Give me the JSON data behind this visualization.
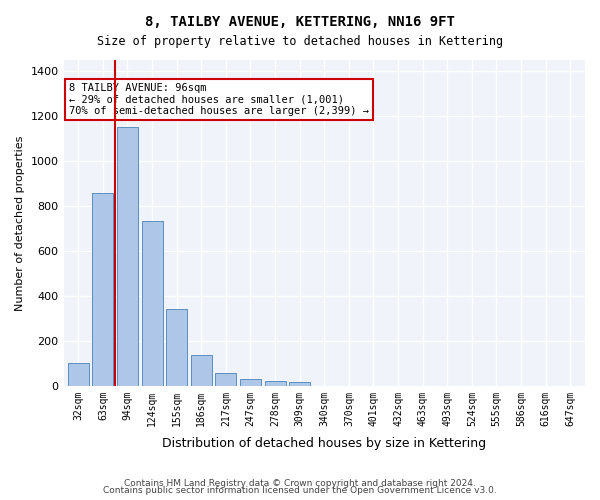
{
  "title": "8, TAILBY AVENUE, KETTERING, NN16 9FT",
  "subtitle": "Size of property relative to detached houses in Kettering",
  "xlabel": "Distribution of detached houses by size in Kettering",
  "ylabel": "Number of detached properties",
  "footnote1": "Contains HM Land Registry data © Crown copyright and database right 2024.",
  "footnote2": "Contains public sector information licensed under the Open Government Licence v3.0.",
  "bar_labels": [
    "32sqm",
    "63sqm",
    "94sqm",
    "124sqm",
    "155sqm",
    "186sqm",
    "217sqm",
    "247sqm",
    "278sqm",
    "309sqm",
    "340sqm",
    "370sqm",
    "401sqm",
    "432sqm",
    "463sqm",
    "493sqm",
    "524sqm",
    "555sqm",
    "586sqm",
    "616sqm",
    "647sqm"
  ],
  "bar_values": [
    100,
    860,
    1150,
    735,
    340,
    135,
    55,
    30,
    22,
    15,
    0,
    0,
    0,
    0,
    0,
    0,
    0,
    0,
    0,
    0,
    0
  ],
  "bar_color": "#aec6e8",
  "bar_edgecolor": "#5a8fc0",
  "bg_color": "#f0f4fa",
  "grid_color": "#ffffff",
  "annotation_text": "8 TAILBY AVENUE: 96sqm\n← 29% of detached houses are smaller (1,001)\n70% of semi-detached houses are larger (2,399) →",
  "vline_x": 1.5,
  "vline_color": "#cc0000",
  "annotation_box_color": "#cc0000",
  "ylim": [
    0,
    1450
  ],
  "yticks": [
    0,
    200,
    400,
    600,
    800,
    1000,
    1200,
    1400
  ]
}
